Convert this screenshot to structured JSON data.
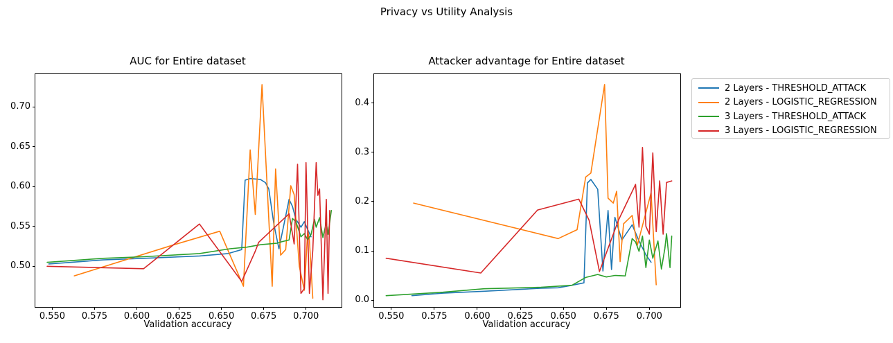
{
  "figure": {
    "title": "Privacy vs Utility Analysis",
    "background": "#ffffff"
  },
  "legend": {
    "position": "outside-right-top",
    "entries": [
      {
        "label": "2 Layers - THRESHOLD_ATTACK",
        "color": "#1f77b4"
      },
      {
        "label": "2 Layers - LOGISTIC_REGRESSION",
        "color": "#ff7f0e"
      },
      {
        "label": "3 Layers - THRESHOLD_ATTACK",
        "color": "#2ca02c"
      },
      {
        "label": "3 Layers - LOGISTIC_REGRESSION",
        "color": "#d62728"
      }
    ]
  },
  "chart_data": [
    {
      "type": "line",
      "title": "AUC for Entire dataset",
      "xlabel": "Validation accuracy",
      "ylabel": "",
      "grid": false,
      "xlim": [
        0.54,
        0.721
      ],
      "ylim": [
        0.449,
        0.741
      ],
      "xticks": [
        0.55,
        0.575,
        0.6,
        0.625,
        0.65,
        0.675,
        0.7
      ],
      "xtick_labels": [
        "0.550",
        "0.575",
        "0.600",
        "0.625",
        "0.650",
        "0.675",
        "0.700"
      ],
      "yticks": [
        0.5,
        0.55,
        0.6,
        0.65,
        0.7
      ],
      "ytick_labels": [
        "0.50",
        "0.55",
        "0.60",
        "0.65",
        "0.70"
      ],
      "series": [
        {
          "name": "2 Layers - THRESHOLD_ATTACK",
          "color": "#1f77b4",
          "points": [
            [
              0.548,
              0.503
            ],
            [
              0.58,
              0.508
            ],
            [
              0.604,
              0.51
            ],
            [
              0.637,
              0.513
            ],
            [
              0.654,
              0.516
            ],
            [
              0.662,
              0.521
            ],
            [
              0.664,
              0.608
            ],
            [
              0.667,
              0.61
            ],
            [
              0.673,
              0.609
            ],
            [
              0.676,
              0.605
            ],
            [
              0.678,
              0.597
            ],
            [
              0.681,
              0.553
            ],
            [
              0.684,
              0.522
            ],
            [
              0.687,
              0.553
            ],
            [
              0.69,
              0.584
            ],
            [
              0.692,
              0.575
            ],
            [
              0.694,
              0.559
            ],
            [
              0.697,
              0.549
            ],
            [
              0.699,
              0.556
            ],
            [
              0.701,
              0.546
            ],
            [
              0.703,
              0.537
            ]
          ]
        },
        {
          "name": "2 Layers - LOGISTIC_REGRESSION",
          "color": "#ff7f0e",
          "points": [
            [
              0.563,
              0.488
            ],
            [
              0.622,
              0.527
            ],
            [
              0.649,
              0.544
            ],
            [
              0.663,
              0.475
            ],
            [
              0.667,
              0.646
            ],
            [
              0.67,
              0.565
            ],
            [
              0.674,
              0.728
            ],
            [
              0.68,
              0.475
            ],
            [
              0.682,
              0.622
            ],
            [
              0.685,
              0.514
            ],
            [
              0.688,
              0.521
            ],
            [
              0.691,
              0.601
            ],
            [
              0.693,
              0.59
            ],
            [
              0.696,
              0.5
            ],
            [
              0.699,
              0.47
            ],
            [
              0.701,
              0.545
            ],
            [
              0.702,
              0.533
            ],
            [
              0.704,
              0.46
            ]
          ]
        },
        {
          "name": "3 Layers - THRESHOLD_ATTACK",
          "color": "#2ca02c",
          "points": [
            [
              0.547,
              0.505
            ],
            [
              0.58,
              0.51
            ],
            [
              0.604,
              0.512
            ],
            [
              0.637,
              0.516
            ],
            [
              0.655,
              0.522
            ],
            [
              0.665,
              0.524
            ],
            [
              0.673,
              0.527
            ],
            [
              0.683,
              0.529
            ],
            [
              0.686,
              0.531
            ],
            [
              0.69,
              0.533
            ],
            [
              0.692,
              0.56
            ],
            [
              0.694,
              0.556
            ],
            [
              0.697,
              0.537
            ],
            [
              0.699,
              0.541
            ],
            [
              0.701,
              0.533
            ],
            [
              0.703,
              0.54
            ],
            [
              0.705,
              0.559
            ],
            [
              0.706,
              0.549
            ],
            [
              0.708,
              0.561
            ],
            [
              0.71,
              0.536
            ],
            [
              0.712,
              0.555
            ],
            [
              0.713,
              0.54
            ],
            [
              0.715,
              0.57
            ]
          ]
        },
        {
          "name": "3 Layers - LOGISTIC_REGRESSION",
          "color": "#d62728",
          "points": [
            [
              0.547,
              0.5
            ],
            [
              0.604,
              0.497
            ],
            [
              0.637,
              0.553
            ],
            [
              0.662,
              0.481
            ],
            [
              0.67,
              0.519
            ],
            [
              0.672,
              0.53
            ],
            [
              0.687,
              0.56
            ],
            [
              0.69,
              0.566
            ],
            [
              0.693,
              0.528
            ],
            [
              0.695,
              0.628
            ],
            [
              0.697,
              0.466
            ],
            [
              0.699,
              0.472
            ],
            [
              0.7,
              0.63
            ],
            [
              0.702,
              0.466
            ],
            [
              0.704,
              0.52
            ],
            [
              0.706,
              0.63
            ],
            [
              0.707,
              0.589
            ],
            [
              0.708,
              0.597
            ],
            [
              0.71,
              0.458
            ],
            [
              0.712,
              0.584
            ],
            [
              0.713,
              0.466
            ],
            [
              0.714,
              0.57
            ]
          ]
        }
      ]
    },
    {
      "type": "line",
      "title": "Attacker advantage for Entire dataset",
      "xlabel": "Validation accuracy",
      "ylabel": "",
      "grid": false,
      "xlim": [
        0.54,
        0.718
      ],
      "ylim": [
        -0.014,
        0.459
      ],
      "xticks": [
        0.55,
        0.575,
        0.6,
        0.625,
        0.65,
        0.675,
        0.7
      ],
      "xtick_labels": [
        "0.550",
        "0.575",
        "0.600",
        "0.625",
        "0.650",
        "0.675",
        "0.700"
      ],
      "yticks": [
        0.0,
        0.1,
        0.2,
        0.3,
        0.4
      ],
      "ytick_labels": [
        "0.0",
        "0.1",
        "0.2",
        "0.3",
        "0.4"
      ],
      "series": [
        {
          "name": "2 Layers - THRESHOLD_ATTACK",
          "color": "#1f77b4",
          "points": [
            [
              0.562,
              0.009
            ],
            [
              0.58,
              0.014
            ],
            [
              0.604,
              0.018
            ],
            [
              0.637,
              0.024
            ],
            [
              0.647,
              0.025
            ],
            [
              0.655,
              0.03
            ],
            [
              0.662,
              0.035
            ],
            [
              0.664,
              0.238
            ],
            [
              0.666,
              0.245
            ],
            [
              0.67,
              0.225
            ],
            [
              0.673,
              0.059
            ],
            [
              0.676,
              0.182
            ],
            [
              0.678,
              0.062
            ],
            [
              0.68,
              0.168
            ],
            [
              0.684,
              0.122
            ],
            [
              0.69,
              0.153
            ],
            [
              0.694,
              0.12
            ],
            [
              0.698,
              0.092
            ],
            [
              0.701,
              0.077
            ]
          ]
        },
        {
          "name": "2 Layers - LOGISTIC_REGRESSION",
          "color": "#ff7f0e",
          "points": [
            [
              0.563,
              0.197
            ],
            [
              0.647,
              0.125
            ],
            [
              0.658,
              0.143
            ],
            [
              0.663,
              0.25
            ],
            [
              0.666,
              0.258
            ],
            [
              0.674,
              0.438
            ],
            [
              0.676,
              0.207
            ],
            [
              0.679,
              0.197
            ],
            [
              0.681,
              0.221
            ],
            [
              0.683,
              0.078
            ],
            [
              0.685,
              0.155
            ],
            [
              0.69,
              0.172
            ],
            [
              0.693,
              0.111
            ],
            [
              0.701,
              0.218
            ],
            [
              0.704,
              0.031
            ]
          ]
        },
        {
          "name": "3 Layers - THRESHOLD_ATTACK",
          "color": "#2ca02c",
          "points": [
            [
              0.547,
              0.009
            ],
            [
              0.58,
              0.016
            ],
            [
              0.604,
              0.023
            ],
            [
              0.637,
              0.026
            ],
            [
              0.655,
              0.03
            ],
            [
              0.663,
              0.046
            ],
            [
              0.67,
              0.052
            ],
            [
              0.675,
              0.047
            ],
            [
              0.68,
              0.05
            ],
            [
              0.686,
              0.049
            ],
            [
              0.69,
              0.125
            ],
            [
              0.692,
              0.118
            ],
            [
              0.694,
              0.099
            ],
            [
              0.696,
              0.13
            ],
            [
              0.698,
              0.066
            ],
            [
              0.7,
              0.122
            ],
            [
              0.702,
              0.085
            ],
            [
              0.705,
              0.12
            ],
            [
              0.707,
              0.063
            ],
            [
              0.709,
              0.105
            ],
            [
              0.71,
              0.135
            ],
            [
              0.712,
              0.066
            ],
            [
              0.713,
              0.13
            ]
          ]
        },
        {
          "name": "3 Layers - LOGISTIC_REGRESSION",
          "color": "#d62728",
          "points": [
            [
              0.547,
              0.085
            ],
            [
              0.602,
              0.055
            ],
            [
              0.635,
              0.183
            ],
            [
              0.659,
              0.205
            ],
            [
              0.665,
              0.162
            ],
            [
              0.671,
              0.058
            ],
            [
              0.682,
              0.162
            ],
            [
              0.692,
              0.235
            ],
            [
              0.694,
              0.148
            ],
            [
              0.696,
              0.31
            ],
            [
              0.698,
              0.15
            ],
            [
              0.7,
              0.134
            ],
            [
              0.702,
              0.299
            ],
            [
              0.704,
              0.139
            ],
            [
              0.706,
              0.242
            ],
            [
              0.708,
              0.134
            ],
            [
              0.71,
              0.239
            ],
            [
              0.713,
              0.242
            ]
          ]
        }
      ]
    }
  ]
}
